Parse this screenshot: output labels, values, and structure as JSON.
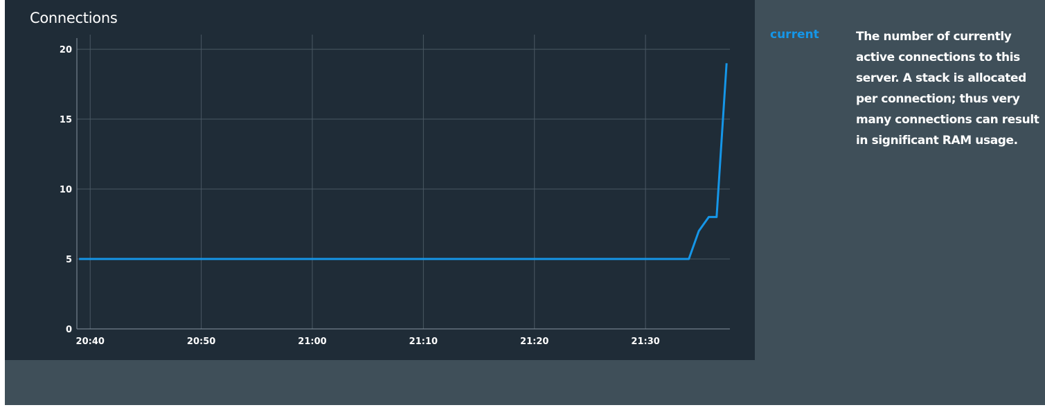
{
  "chart_data": {
    "type": "line",
    "title": "Connections",
    "xlabel": "",
    "ylabel": "",
    "x_ticks": [
      "20:40",
      "20:50",
      "21:00",
      "21:10",
      "21:20",
      "21:30"
    ],
    "x_tick_minutes": [
      1240,
      1250,
      1260,
      1270,
      1280,
      1290
    ],
    "xlim_minutes": [
      1238.8,
      1297.6
    ],
    "y_ticks": [
      0,
      5,
      10,
      15,
      20
    ],
    "ylim": [
      0,
      20.4
    ],
    "grid": true,
    "series": [
      {
        "name": "current",
        "color": "#1596e8",
        "x_minutes": [
          1239,
          1249,
          1259,
          1269,
          1279,
          1289,
          1293.9,
          1294.8,
          1295.7,
          1296.4,
          1297.3
        ],
        "values": [
          5,
          5,
          5,
          5,
          5,
          5,
          5,
          7,
          8,
          8,
          19
        ]
      }
    ]
  },
  "legend": {
    "name": "current",
    "description": "The number of currently active connections to this server. A stack is allocated per connection; thus very many connections can result in significant RAM usage."
  }
}
